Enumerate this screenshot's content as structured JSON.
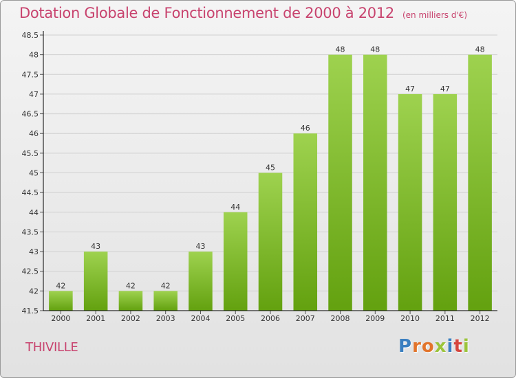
{
  "title": "Dotation Globale de Fonctionnement de 2000 à 2012",
  "subtitle": "(en milliers d'€)",
  "commune": "THIVILLE",
  "brand": {
    "letters": [
      "P",
      "r",
      "o",
      "x",
      "i",
      "t",
      "i"
    ],
    "colors": [
      "#3a7fc0",
      "#e2742b",
      "#e2742b",
      "#9bc43a",
      "#3a7fc0",
      "#d5463e",
      "#9bc43a"
    ]
  },
  "colors": {
    "bar_top": "#9ed24f",
    "bar_bottom": "#63a10f",
    "text": "#c8436e",
    "grid": "#d0d0d0",
    "axis": "#000000"
  },
  "chart_data": {
    "type": "bar",
    "title": "Dotation Globale de Fonctionnement de 2000 à 2012",
    "subtitle": "(en milliers d'€)",
    "categories": [
      "2000",
      "2001",
      "2002",
      "2003",
      "2004",
      "2005",
      "2006",
      "2007",
      "2008",
      "2009",
      "2010",
      "2011",
      "2012"
    ],
    "values": [
      42,
      43,
      42,
      42,
      43,
      44,
      45,
      46,
      48,
      48,
      47,
      47,
      48
    ],
    "ylim": [
      41.5,
      48.5
    ],
    "yticks": [
      41.5,
      42,
      42.5,
      43,
      43.5,
      44,
      44.5,
      45,
      45.5,
      46,
      46.5,
      47,
      47.5,
      48,
      48.5
    ],
    "ytick_labels": [
      "41.5",
      "42",
      "42.5",
      "43",
      "43.5",
      "44",
      "44.5",
      "45",
      "45.5",
      "46",
      "46.5",
      "47",
      "47.5",
      "48",
      "48.5"
    ],
    "grid": true,
    "xlabel": "",
    "ylabel": ""
  }
}
